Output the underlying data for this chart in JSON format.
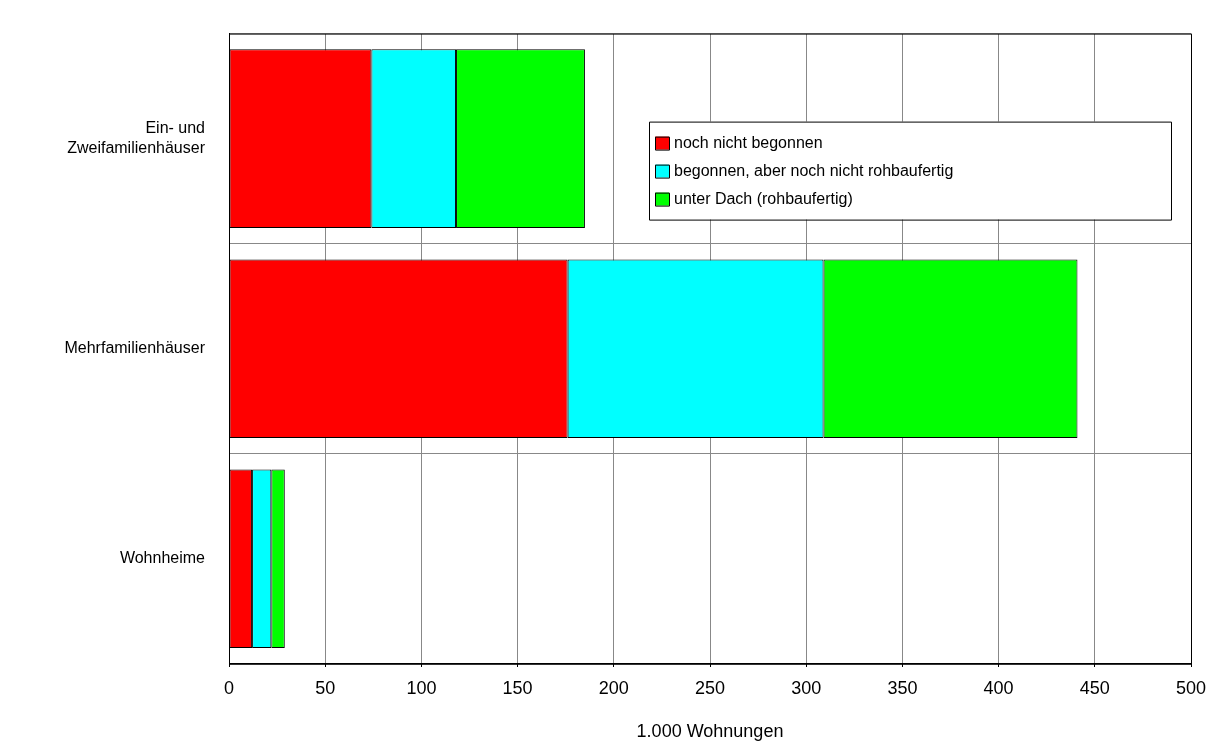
{
  "chart_data": {
    "type": "bar",
    "orientation": "horizontal",
    "stacked": true,
    "xlabel": "1.000 Wohnungen",
    "categories": [
      "Ein- und Zweifamilienhäuser",
      "Mehrfamilienhäuser",
      "Wohnheime"
    ],
    "series": [
      {
        "name": "noch nicht begonnen",
        "color": "#ff0000",
        "values": [
          74,
          176,
          12
        ]
      },
      {
        "name": "begonnen, aber noch nicht rohbaufertig",
        "color": "#00ffff",
        "values": [
          44,
          133,
          10
        ]
      },
      {
        "name": "unter Dach (rohbaufertig)",
        "color": "#00ff00",
        "values": [
          67,
          132,
          7
        ]
      }
    ],
    "xlim": [
      0,
      500
    ],
    "xticks": [
      0,
      50,
      100,
      150,
      200,
      250,
      300,
      350,
      400,
      450,
      500
    ],
    "grid": true,
    "legend": "top right"
  }
}
